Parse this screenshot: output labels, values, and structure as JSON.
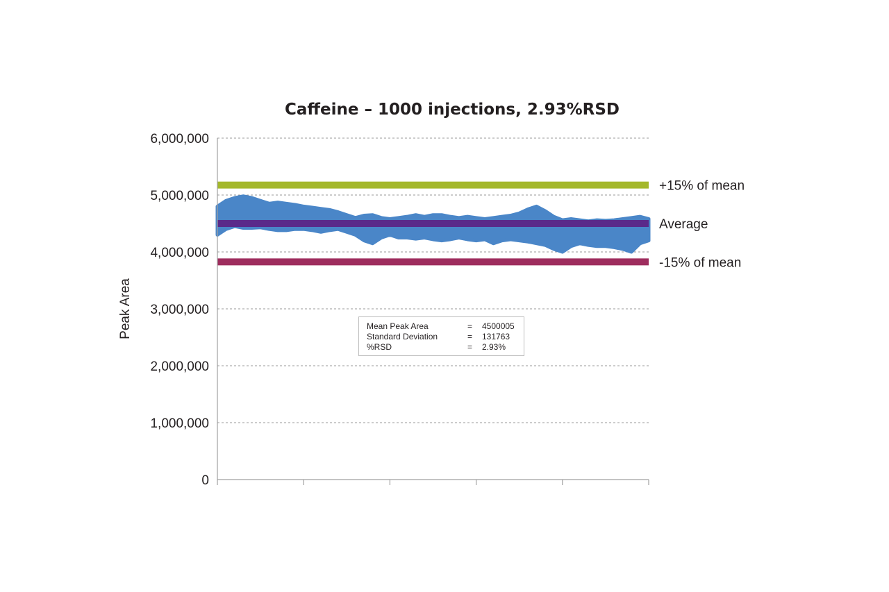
{
  "chart_data": {
    "type": "scatter",
    "title": "Caffeine – 1000 injections, 2.93%RSD",
    "xlabel": "",
    "ylabel": "Peak Area",
    "xlim": [
      0,
      1000
    ],
    "ylim": [
      0,
      6000000
    ],
    "yticks": [
      0,
      1000000,
      2000000,
      3000000,
      4000000,
      5000000,
      6000000
    ],
    "ytick_labels": [
      "0",
      "1,000,000",
      "2,000,000",
      "3,000,000",
      "4,000,000",
      "5,000,000",
      "6,000,000"
    ],
    "xticks": [
      0,
      200,
      400,
      600,
      800,
      1000
    ],
    "grid": true,
    "series_color": "#4a86c8",
    "band_profile": {
      "x": [
        0,
        20,
        40,
        60,
        80,
        100,
        120,
        140,
        160,
        180,
        200,
        220,
        240,
        260,
        280,
        300,
        320,
        340,
        360,
        380,
        400,
        420,
        440,
        460,
        480,
        500,
        520,
        540,
        560,
        580,
        600,
        620,
        640,
        660,
        680,
        700,
        720,
        740,
        760,
        780,
        800,
        820,
        840,
        860,
        880,
        900,
        920,
        940,
        960,
        980,
        1000
      ],
      "upper": [
        4800000,
        4900000,
        4950000,
        4980000,
        4950000,
        4900000,
        4850000,
        4870000,
        4850000,
        4830000,
        4800000,
        4780000,
        4760000,
        4740000,
        4700000,
        4650000,
        4600000,
        4640000,
        4650000,
        4600000,
        4580000,
        4600000,
        4620000,
        4650000,
        4620000,
        4650000,
        4650000,
        4620000,
        4600000,
        4620000,
        4600000,
        4580000,
        4600000,
        4620000,
        4640000,
        4680000,
        4750000,
        4800000,
        4720000,
        4620000,
        4560000,
        4580000,
        4560000,
        4540000,
        4560000,
        4550000,
        4560000,
        4580000,
        4600000,
        4620000,
        4580000
      ],
      "lower": [
        4300000,
        4400000,
        4450000,
        4420000,
        4420000,
        4430000,
        4400000,
        4380000,
        4380000,
        4400000,
        4400000,
        4380000,
        4350000,
        4380000,
        4400000,
        4350000,
        4300000,
        4200000,
        4150000,
        4250000,
        4300000,
        4250000,
        4250000,
        4230000,
        4250000,
        4220000,
        4200000,
        4220000,
        4250000,
        4220000,
        4200000,
        4220000,
        4150000,
        4200000,
        4220000,
        4200000,
        4180000,
        4150000,
        4120000,
        4050000,
        4000000,
        4100000,
        4150000,
        4120000,
        4100000,
        4100000,
        4080000,
        4050000,
        4000000,
        4150000,
        4200000
      ]
    },
    "reference_lines": [
      {
        "name": "+15% of mean",
        "value": 5175006,
        "color": "#a4b82b"
      },
      {
        "name": "Average",
        "value": 4500005,
        "color": "#5a2a8a"
      },
      {
        "name": "-15% of mean",
        "value": 3825004,
        "color": "#9e2d5e"
      }
    ],
    "stats_box": [
      {
        "label": "Mean Peak Area",
        "eq": "=",
        "value": "4500005"
      },
      {
        "label": "Standard Deviation",
        "eq": "=",
        "value": "131763"
      },
      {
        "label": "%RSD",
        "eq": "=",
        "value": "2.93%"
      }
    ]
  }
}
